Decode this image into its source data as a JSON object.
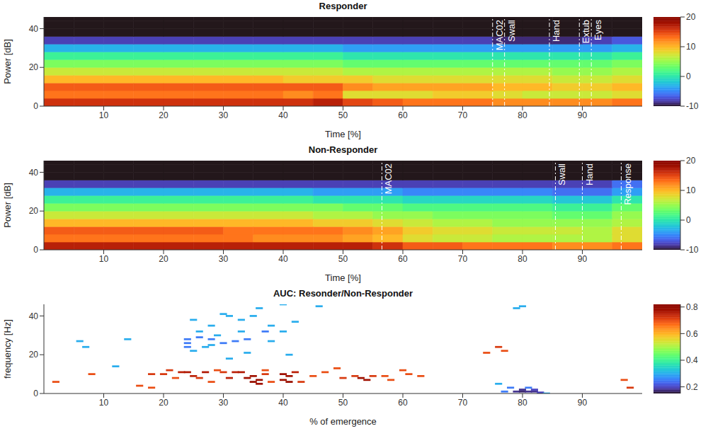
{
  "chart_data": [
    {
      "type": "heatmap",
      "title": "Responder",
      "x_label": "Time [%]",
      "y_label": "Power [dB]",
      "xlim": [
        0,
        100
      ],
      "xticks": [
        10,
        20,
        30,
        40,
        50,
        60,
        70,
        80,
        90
      ],
      "ylim": [
        0,
        46
      ],
      "yticks": [
        0,
        20,
        40
      ],
      "x_edges": [
        0,
        5,
        10,
        15,
        20,
        25,
        30,
        35,
        40,
        45,
        50,
        55,
        60,
        65,
        70,
        75,
        80,
        85,
        90,
        95,
        100
      ],
      "y_edges": [
        0,
        4,
        8,
        12,
        16,
        20,
        24,
        28,
        32,
        36,
        40,
        44,
        48
      ],
      "z": [
        [
          16,
          16,
          16,
          16,
          16,
          16,
          16,
          16,
          16,
          17,
          15,
          14,
          13,
          13,
          13,
          12,
          12,
          12,
          12,
          13
        ],
        [
          13,
          13,
          13,
          13,
          13,
          13,
          13,
          13,
          12,
          13,
          8,
          8,
          8,
          9,
          9,
          8,
          7,
          7,
          7,
          8
        ],
        [
          14,
          14,
          14,
          14,
          14,
          14,
          14,
          14,
          14,
          14,
          12,
          11,
          11,
          11,
          11,
          10,
          10,
          9,
          9,
          10
        ],
        [
          10,
          10,
          10,
          10,
          10,
          10,
          10,
          10,
          9,
          9,
          9,
          8,
          8,
          8,
          8,
          8,
          8,
          7,
          7,
          8
        ],
        [
          7,
          7,
          7,
          7,
          7,
          7,
          7,
          7,
          7,
          7,
          6,
          6,
          6,
          6,
          6,
          6,
          6,
          5,
          5,
          6
        ],
        [
          4,
          4,
          4,
          4,
          4,
          4,
          4,
          4,
          4,
          4,
          3,
          3,
          3,
          3,
          3,
          3,
          3,
          3,
          3,
          4
        ],
        [
          1,
          1,
          1,
          1,
          1,
          1,
          1,
          1,
          1,
          1,
          0,
          0,
          0,
          0,
          0,
          0,
          0,
          0,
          0,
          1
        ],
        [
          -3,
          -3,
          -3,
          -3,
          -3,
          -3,
          -3,
          -3,
          -3,
          -3,
          -4,
          -4,
          -4,
          -4,
          -4,
          -4,
          -4,
          -4,
          -4,
          -3
        ],
        [
          -8,
          -8,
          -8,
          -8,
          -8,
          -8,
          -8,
          -8,
          -8,
          -8,
          -8,
          -8,
          -8,
          -8,
          -8,
          -9,
          -9,
          -9,
          -8,
          -7
        ],
        [
          -12,
          -12,
          -12,
          -12,
          -12,
          -12,
          -12,
          -12,
          -12,
          -12,
          -12,
          -12,
          -12,
          -12,
          -12,
          -12,
          -12,
          -12,
          -12,
          -12
        ],
        [
          -12,
          -12,
          -12,
          -12,
          -12,
          -12,
          -12,
          -12,
          -12,
          -12,
          -12,
          -12,
          -12,
          -12,
          -12,
          -12,
          -12,
          -12,
          -12,
          -12
        ],
        [
          -12,
          -12,
          -12,
          -12,
          -12,
          -12,
          -12,
          -12,
          -12,
          -12,
          -12,
          -12,
          -12,
          -12,
          -12,
          -12,
          -12,
          -12,
          -12,
          -12
        ]
      ],
      "colorbar": {
        "range": [
          -10,
          20
        ],
        "ticks": [
          -10,
          0,
          10,
          20
        ]
      },
      "annotations": [
        {
          "x": 75,
          "text": "MAC02"
        },
        {
          "x": 77,
          "text": "Swall"
        },
        {
          "x": 84.5,
          "text": "Hand"
        },
        {
          "x": 89.5,
          "text": "Extub"
        },
        {
          "x": 91.5,
          "text": "Eyes"
        }
      ]
    },
    {
      "type": "heatmap",
      "title": "Non-Responder",
      "x_label": "Time [%]",
      "y_label": "Power [dB]",
      "xlim": [
        0,
        100
      ],
      "xticks": [
        10,
        20,
        30,
        40,
        50,
        60,
        70,
        80,
        90
      ],
      "ylim": [
        0,
        46
      ],
      "yticks": [
        0,
        20,
        40
      ],
      "x_edges": [
        0,
        5,
        10,
        15,
        20,
        25,
        30,
        35,
        40,
        45,
        50,
        55,
        60,
        65,
        70,
        75,
        80,
        85,
        90,
        95,
        100
      ],
      "y_edges": [
        0,
        4,
        8,
        12,
        16,
        20,
        24,
        28,
        32,
        36,
        40,
        44,
        48
      ],
      "z": [
        [
          17,
          17,
          17,
          17,
          17,
          17,
          17,
          17,
          17,
          17,
          17,
          16,
          14,
          14,
          13,
          13,
          13,
          12,
          12,
          13
        ],
        [
          13,
          13,
          13,
          13,
          13,
          13,
          13,
          12,
          12,
          12,
          11,
          10,
          8,
          7,
          7,
          6,
          6,
          6,
          6,
          8
        ],
        [
          14,
          14,
          14,
          14,
          14,
          14,
          13,
          13,
          13,
          13,
          12,
          11,
          9,
          8,
          8,
          7,
          7,
          7,
          6,
          8
        ],
        [
          10,
          10,
          10,
          10,
          10,
          10,
          10,
          10,
          10,
          9,
          9,
          8,
          7,
          6,
          6,
          5,
          5,
          5,
          5,
          6
        ],
        [
          7,
          7,
          7,
          7,
          7,
          7,
          7,
          7,
          7,
          6,
          6,
          5,
          5,
          4,
          4,
          4,
          4,
          3,
          3,
          5
        ],
        [
          4,
          4,
          4,
          4,
          4,
          4,
          4,
          4,
          4,
          4,
          3,
          3,
          2,
          2,
          2,
          2,
          2,
          1,
          1,
          3
        ],
        [
          1,
          1,
          1,
          1,
          1,
          1,
          1,
          1,
          1,
          0,
          0,
          0,
          -1,
          -1,
          -1,
          -1,
          -1,
          -2,
          -2,
          0
        ],
        [
          -3,
          -3,
          -3,
          -3,
          -3,
          -3,
          -3,
          -3,
          -3,
          -4,
          -4,
          -4,
          -5,
          -5,
          -5,
          -5,
          -5,
          -6,
          -6,
          -4
        ],
        [
          -8,
          -8,
          -8,
          -8,
          -8,
          -8,
          -8,
          -8,
          -8,
          -8,
          -8,
          -8,
          -8,
          -8,
          -8,
          -8,
          -8,
          -8,
          -8,
          -6
        ],
        [
          -12,
          -12,
          -12,
          -12,
          -12,
          -12,
          -12,
          -12,
          -12,
          -12,
          -12,
          -12,
          -12,
          -12,
          -12,
          -12,
          -12,
          -12,
          -12,
          -12
        ],
        [
          -12,
          -12,
          -12,
          -12,
          -12,
          -12,
          -12,
          -12,
          -12,
          -12,
          -12,
          -12,
          -12,
          -12,
          -12,
          -12,
          -12,
          -12,
          -12,
          -12
        ],
        [
          -12,
          -12,
          -12,
          -12,
          -12,
          -12,
          -12,
          -12,
          -12,
          -12,
          -12,
          -12,
          -12,
          -12,
          -12,
          -12,
          -12,
          -12,
          -12,
          -12
        ]
      ],
      "colorbar": {
        "range": [
          -10,
          20
        ],
        "ticks": [
          -10,
          0,
          10,
          20
        ]
      },
      "annotations": [
        {
          "x": 56.5,
          "text": "MAC02"
        },
        {
          "x": 85.5,
          "text": "Swall"
        },
        {
          "x": 90,
          "text": "Hand"
        },
        {
          "x": 96.5,
          "text": "Response"
        }
      ]
    },
    {
      "type": "heatmap",
      "title": "AUC: Resonder/Non-Responder",
      "x_label": "% of emergence",
      "y_label": "frequency [Hz]",
      "xlim": [
        0,
        100
      ],
      "xticks": [
        10,
        20,
        30,
        40,
        50,
        60,
        70,
        80,
        90
      ],
      "ylim": [
        0,
        46
      ],
      "yticks": [
        0,
        20,
        40
      ],
      "cell_size": [
        1.2,
        1
      ],
      "cells": [
        [
          6,
          27,
          0.3
        ],
        [
          7,
          24,
          0.3
        ],
        [
          14,
          28,
          0.3
        ],
        [
          12,
          14,
          0.3
        ],
        [
          24,
          28,
          0.25
        ],
        [
          24,
          26,
          0.25
        ],
        [
          24,
          24,
          0.25
        ],
        [
          25,
          22,
          0.3
        ],
        [
          25,
          38,
          0.3
        ],
        [
          26,
          29,
          0.25
        ],
        [
          26,
          32,
          0.3
        ],
        [
          28,
          35,
          0.3
        ],
        [
          28,
          25,
          0.3
        ],
        [
          28,
          28,
          0.25
        ],
        [
          29,
          30,
          0.3
        ],
        [
          30,
          41,
          0.3
        ],
        [
          30,
          26,
          0.25
        ],
        [
          31,
          40,
          0.3
        ],
        [
          31,
          18,
          0.3
        ],
        [
          32,
          27,
          0.25
        ],
        [
          33,
          38,
          0.3
        ],
        [
          33,
          32,
          0.3
        ],
        [
          34,
          21,
          0.3
        ],
        [
          34,
          28,
          0.25
        ],
        [
          35,
          40,
          0.3
        ],
        [
          36,
          44,
          0.3
        ],
        [
          38,
          35,
          0.3
        ],
        [
          38,
          27,
          0.3
        ],
        [
          40,
          46,
          0.3
        ],
        [
          40,
          32,
          0.3
        ],
        [
          41,
          20,
          0.3
        ],
        [
          42,
          37,
          0.3
        ],
        [
          46,
          45,
          0.3
        ],
        [
          37,
          32,
          0.25
        ],
        [
          27,
          24,
          0.3
        ],
        [
          2,
          6,
          0.7
        ],
        [
          8,
          10,
          0.7
        ],
        [
          16,
          4,
          0.7
        ],
        [
          18,
          3,
          0.7
        ],
        [
          18,
          10,
          0.72
        ],
        [
          20,
          10,
          0.72
        ],
        [
          21,
          12,
          0.72
        ],
        [
          22,
          8,
          0.7
        ],
        [
          23,
          11,
          0.75
        ],
        [
          24,
          11,
          0.76
        ],
        [
          25,
          9,
          0.75
        ],
        [
          26,
          8,
          0.72
        ],
        [
          27,
          11,
          0.76
        ],
        [
          28,
          6,
          0.7
        ],
        [
          29,
          12,
          0.7
        ],
        [
          30,
          11,
          0.72
        ],
        [
          31,
          8,
          0.75
        ],
        [
          32,
          11,
          0.75
        ],
        [
          33,
          11,
          0.76
        ],
        [
          34,
          8,
          0.78
        ],
        [
          35,
          6,
          0.79
        ],
        [
          35,
          9,
          0.78
        ],
        [
          36,
          7,
          0.79
        ],
        [
          36,
          5,
          0.78
        ],
        [
          37,
          10,
          0.72
        ],
        [
          37,
          12,
          0.7
        ],
        [
          38,
          6,
          0.7
        ],
        [
          40,
          10,
          0.78
        ],
        [
          40,
          7,
          0.78
        ],
        [
          41,
          6,
          0.79
        ],
        [
          41,
          9,
          0.78
        ],
        [
          42,
          11,
          0.75
        ],
        [
          43,
          6,
          0.72
        ],
        [
          45,
          9,
          0.7
        ],
        [
          47,
          11,
          0.7
        ],
        [
          49,
          13,
          0.7
        ],
        [
          50,
          8,
          0.72
        ],
        [
          52,
          9,
          0.72
        ],
        [
          53,
          8,
          0.78
        ],
        [
          54,
          7,
          0.78
        ],
        [
          55,
          9,
          0.72
        ],
        [
          57,
          9,
          0.7
        ],
        [
          58,
          7,
          0.7
        ],
        [
          60,
          12,
          0.7
        ],
        [
          61,
          10,
          0.7
        ],
        [
          63,
          9,
          0.7
        ],
        [
          74,
          21,
          0.7
        ],
        [
          76,
          24,
          0.72
        ],
        [
          77,
          22,
          0.7
        ],
        [
          97,
          7,
          0.7
        ],
        [
          98,
          3,
          0.72
        ],
        [
          76,
          5,
          0.3
        ],
        [
          78,
          3,
          0.25
        ],
        [
          79,
          1,
          0.18
        ],
        [
          80,
          2,
          0.18
        ],
        [
          80,
          1,
          0.17
        ],
        [
          81,
          1,
          0.18
        ],
        [
          82,
          2,
          0.2
        ],
        [
          82,
          1,
          0.18
        ],
        [
          83,
          0.5,
          0.2
        ],
        [
          84,
          0,
          0.3
        ],
        [
          80,
          45,
          0.3
        ],
        [
          79,
          44,
          0.3
        ],
        [
          81,
          3,
          0.25
        ],
        [
          77,
          1,
          0.25
        ]
      ],
      "colorbar": {
        "range": [
          0.15,
          0.82
        ],
        "ticks": [
          0.2,
          0.4,
          0.6,
          0.8
        ]
      }
    }
  ]
}
